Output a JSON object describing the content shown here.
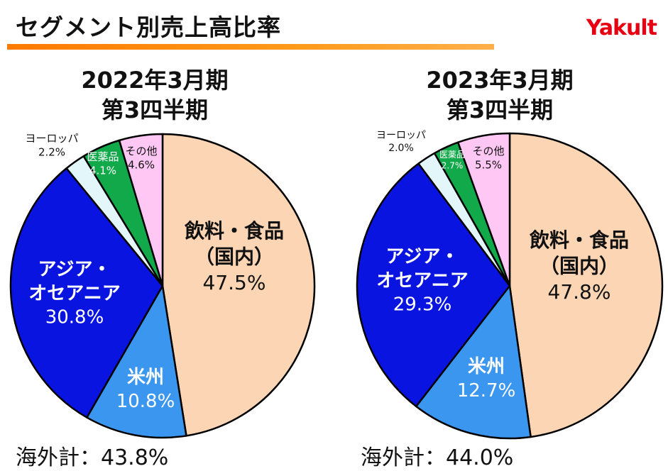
{
  "header": {
    "title": "セグメント別売上高比率",
    "logo": "Yakult"
  },
  "chart_data": [
    {
      "type": "pie",
      "period_line1": "2022年3月期",
      "period_line2": "第3四半期",
      "slices": [
        {
          "label": [
            "飲料・食品",
            "（国内）"
          ],
          "value": 47.5,
          "display": "47.5%",
          "color": "#fcd5b4"
        },
        {
          "label": [
            "米州"
          ],
          "value": 10.8,
          "display": "10.8%",
          "color": "#3b96f0"
        },
        {
          "label": [
            "アジア・",
            "オセアニア"
          ],
          "value": 30.8,
          "display": "30.8%",
          "color": "#0a14e0"
        },
        {
          "label": [
            "ヨーロッパ"
          ],
          "value": 2.2,
          "display": "2.2%",
          "color": "#e3f7fb"
        },
        {
          "label": [
            "医薬品"
          ],
          "value": 4.1,
          "display": "4.1%",
          "color": "#12a94a"
        },
        {
          "label": [
            "その他"
          ],
          "value": 4.6,
          "display": "4.6%",
          "color": "#ffc8f4"
        }
      ],
      "overseas_total": "海外計：43.8%"
    },
    {
      "type": "pie",
      "period_line1": "2023年3月期",
      "period_line2": "第3四半期",
      "slices": [
        {
          "label": [
            "飲料・食品",
            "（国内）"
          ],
          "value": 47.8,
          "display": "47.8%",
          "color": "#fcd5b4"
        },
        {
          "label": [
            "米州"
          ],
          "value": 12.7,
          "display": "12.7%",
          "color": "#3b96f0"
        },
        {
          "label": [
            "アジア・",
            "オセアニア"
          ],
          "value": 29.3,
          "display": "29.3%",
          "color": "#0a14e0"
        },
        {
          "label": [
            "ヨーロッパ"
          ],
          "value": 2.0,
          "display": "2.0%",
          "color": "#e3f7fb"
        },
        {
          "label": [
            "医薬品"
          ],
          "value": 2.7,
          "display": "2.7%",
          "color": "#12a94a"
        },
        {
          "label": [
            "その他"
          ],
          "value": 5.5,
          "display": "5.5%",
          "color": "#ffc8f4"
        }
      ],
      "overseas_total": "海外計：44.0%"
    }
  ]
}
